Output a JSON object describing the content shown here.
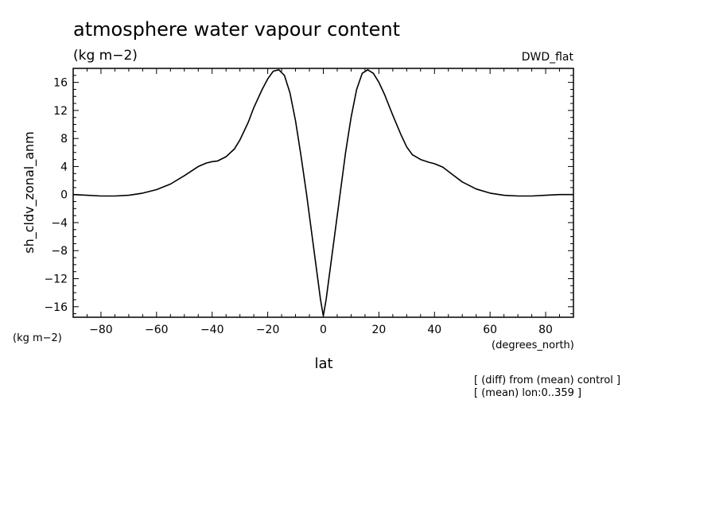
{
  "chart_data": {
    "type": "line",
    "title": "atmosphere water vapour content",
    "subtitle": "(kg m−2)",
    "dataset_label": "DWD_flat",
    "ylabel": "sh_cldv_zonal_anm",
    "yunits": "(kg m−2)",
    "xlabel": "lat",
    "xunits": "(degrees_north)",
    "notes": [
      "[ (diff) from (mean) control ]",
      "[ (mean) lon:0..359 ]"
    ],
    "xlim": [
      -90,
      90
    ],
    "ylim": [
      -17.5,
      18
    ],
    "xticks": [
      -80,
      -60,
      -40,
      -20,
      0,
      20,
      40,
      60,
      80
    ],
    "xtick_labels": [
      "−80",
      "−60",
      "−40",
      "−20",
      "0",
      "20",
      "40",
      "60",
      "80"
    ],
    "yticks": [
      16,
      12,
      8,
      4,
      0,
      -4,
      -8,
      -12,
      -16
    ],
    "ytick_labels": [
      "16",
      "12",
      "8",
      "4",
      "0",
      "−4",
      "−8",
      "−12",
      "−16"
    ],
    "grid": false,
    "series": [
      {
        "x": [
          -90,
          -85,
          -80,
          -75,
          -70,
          -65,
          -60,
          -55,
          -50,
          -45,
          -42,
          -40,
          -38,
          -35,
          -32,
          -30,
          -27,
          -25,
          -22,
          -20,
          -18,
          -16,
          -14,
          -12,
          -10,
          -8,
          -6,
          -4,
          -2,
          -1,
          0,
          1,
          2,
          4,
          6,
          8,
          10,
          12,
          14,
          16,
          18,
          20,
          22,
          25,
          28,
          30,
          32,
          35,
          38,
          40,
          43,
          46,
          50,
          55,
          60,
          65,
          70,
          75,
          80,
          85,
          90
        ],
        "y": [
          0.0,
          -0.1,
          -0.2,
          -0.2,
          -0.1,
          0.2,
          0.7,
          1.5,
          2.7,
          4.0,
          4.5,
          4.7,
          4.8,
          5.4,
          6.5,
          7.8,
          10.3,
          12.4,
          15.0,
          16.5,
          17.6,
          17.8,
          17.0,
          14.5,
          10.5,
          5.5,
          0.0,
          -6.0,
          -12.0,
          -15.0,
          -17.3,
          -15.0,
          -12.0,
          -6.0,
          0.0,
          6.0,
          11.0,
          15.0,
          17.3,
          17.8,
          17.3,
          16.0,
          14.3,
          11.3,
          8.5,
          6.8,
          5.7,
          5.0,
          4.6,
          4.4,
          3.9,
          3.0,
          1.8,
          0.8,
          0.2,
          -0.1,
          -0.2,
          -0.2,
          -0.1,
          0.0,
          0.0
        ]
      }
    ]
  }
}
